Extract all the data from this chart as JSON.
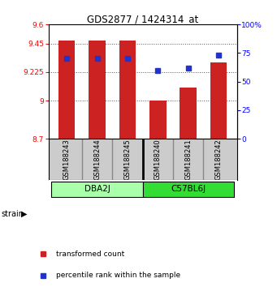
{
  "title": "GDS2877 / 1424314_at",
  "samples": [
    "GSM188243",
    "GSM188244",
    "GSM188245",
    "GSM188240",
    "GSM188241",
    "GSM188242"
  ],
  "bar_values": [
    9.47,
    9.47,
    9.47,
    9.0,
    9.1,
    9.3
  ],
  "bar_baseline": 8.7,
  "percentile_values": [
    70,
    70,
    70,
    60,
    62,
    73
  ],
  "bar_color": "#cc2222",
  "dot_color": "#2233cc",
  "ylim_left": [
    8.7,
    9.6
  ],
  "yticks_left": [
    8.7,
    9.0,
    9.225,
    9.45,
    9.6
  ],
  "ytick_labels_left": [
    "8.7",
    "9",
    "9.225",
    "9.45",
    "9.6"
  ],
  "ylim_right": [
    0,
    100
  ],
  "yticks_right": [
    0,
    25,
    50,
    75,
    100
  ],
  "ytick_labels_right": [
    "0",
    "25",
    "50",
    "75",
    "100%"
  ],
  "groups": [
    {
      "label": "DBA2J",
      "indices": [
        0,
        1,
        2
      ],
      "color": "#aaffaa"
    },
    {
      "label": "C57BL6J",
      "indices": [
        3,
        4,
        5
      ],
      "color": "#33dd33"
    }
  ],
  "strain_label": "strain",
  "legend_bar_label": "transformed count",
  "legend_dot_label": "percentile rank within the sample",
  "background_color": "#ffffff",
  "plot_bg_color": "#ffffff",
  "sample_box_color": "#cccccc"
}
